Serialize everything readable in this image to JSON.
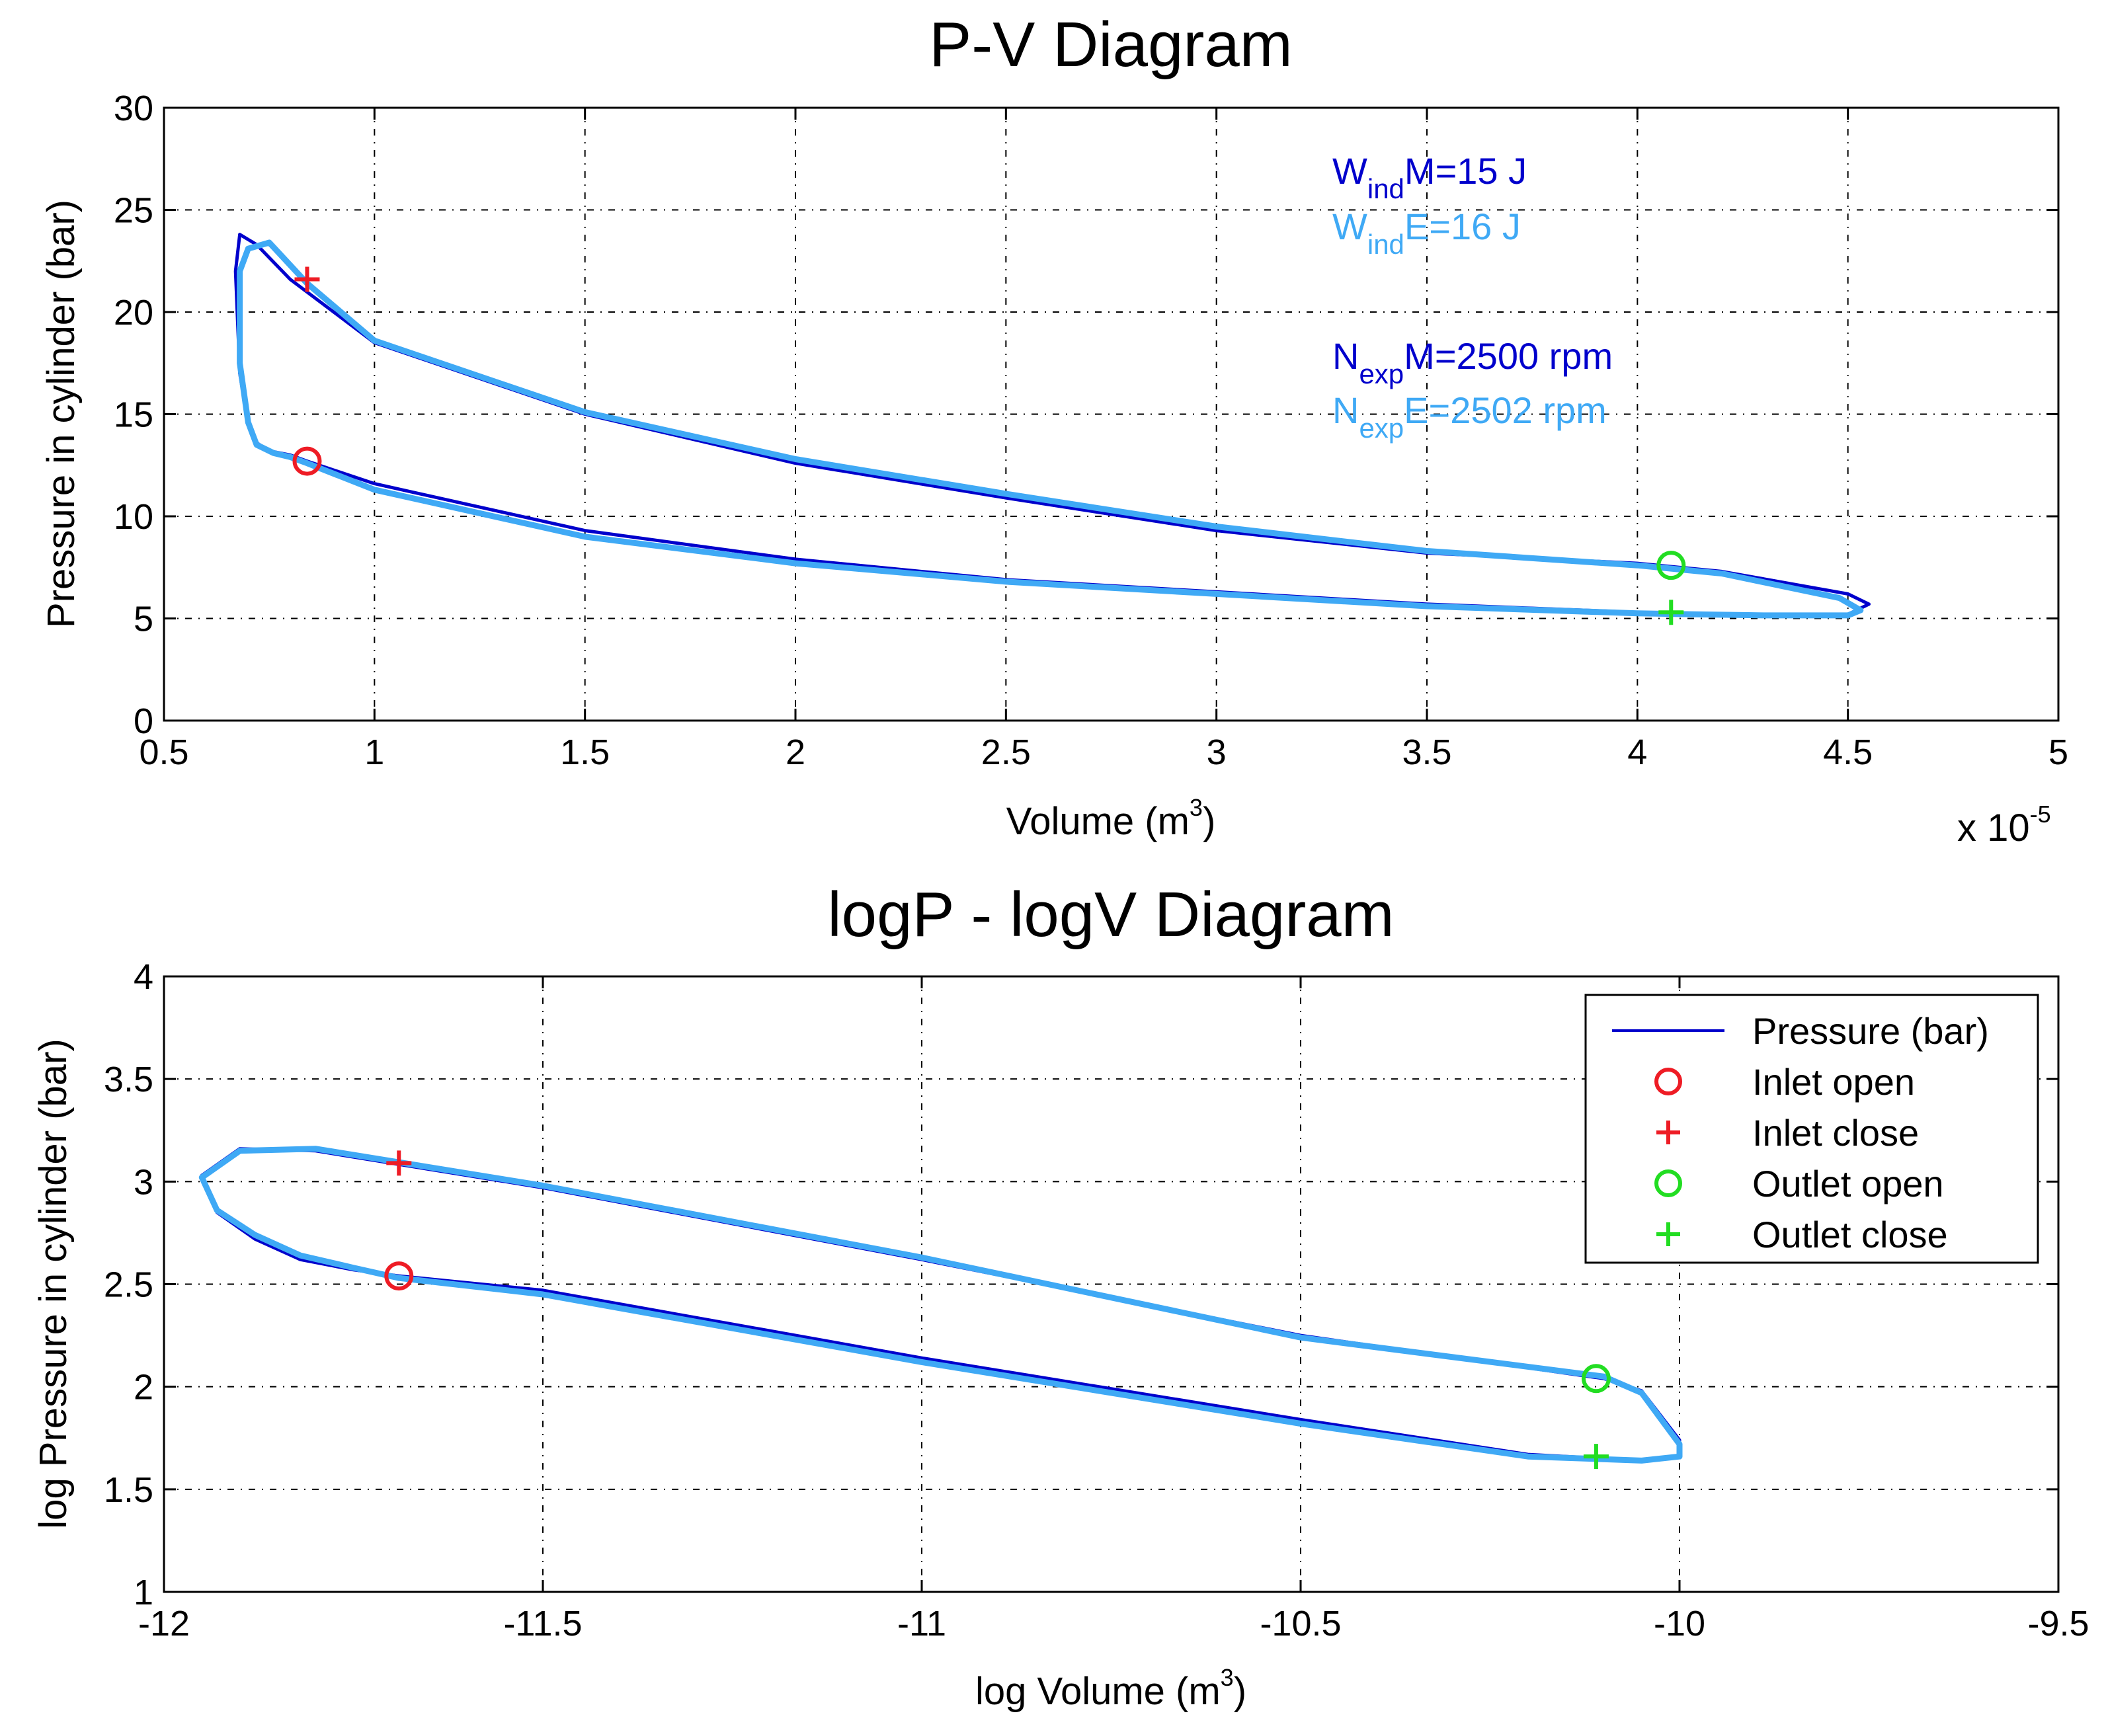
{
  "chart_data": [
    {
      "type": "line",
      "title": "P-V Diagram",
      "xlabel": "Volume (m",
      "xlabel_sup": "3",
      "xlabel_close": ")",
      "ylabel": "Pressure in cylinder (bar)",
      "xlim": [
        0.5,
        5
      ],
      "ylim": [
        0,
        30
      ],
      "x_multiplier": "x 10",
      "x_multiplier_exp": "-5",
      "x_ticks": [
        "0.5",
        "1",
        "1.5",
        "2",
        "2.5",
        "3",
        "3.5",
        "4",
        "4.5",
        "5"
      ],
      "y_ticks": [
        "0",
        "5",
        "10",
        "15",
        "20",
        "25",
        "30"
      ],
      "grid": true,
      "annotations": [
        {
          "main": "W",
          "sub": "ind",
          "rest": "M=15 J",
          "color": "#0000cc"
        },
        {
          "main": "W",
          "sub": "ind",
          "rest": "E=16 J",
          "color": "#3fa9f5"
        },
        {
          "main": "N",
          "sub": "exp",
          "rest": "M=2500 rpm",
          "color": "#0000cc"
        },
        {
          "main": "N",
          "sub": "exp",
          "rest": "E=2502 rpm",
          "color": "#3fa9f5"
        }
      ],
      "series": [
        {
          "name": "Pressure (bar)",
          "color": "#0000cc",
          "x": [
            0.84,
            1.0,
            1.5,
            2.0,
            2.5,
            3.0,
            3.5,
            4.0,
            4.3,
            4.5,
            4.55,
            4.5,
            4.2,
            4.0,
            3.5,
            3.0,
            2.5,
            2.0,
            1.5,
            1.0,
            0.8,
            0.72,
            0.68,
            0.67,
            0.68,
            0.7,
            0.72,
            0.75,
            0.8,
            0.84
          ],
          "y": [
            12.7,
            11.6,
            9.3,
            7.9,
            6.9,
            6.3,
            5.7,
            5.3,
            5.2,
            5.2,
            5.7,
            6.2,
            7.3,
            7.7,
            8.2,
            9.3,
            10.9,
            12.6,
            15.0,
            18.5,
            21.6,
            23.3,
            23.8,
            22.0,
            17.0,
            14.5,
            13.6,
            13.2,
            13.0,
            12.7
          ]
        },
        {
          "name": "",
          "color": "#3fa9f5",
          "x": [
            0.84,
            1.0,
            1.5,
            2.0,
            2.5,
            3.0,
            3.5,
            4.0,
            4.3,
            4.5,
            4.53,
            4.48,
            4.2,
            4.0,
            3.5,
            3.0,
            2.5,
            2.0,
            1.5,
            1.0,
            0.84,
            0.75,
            0.7,
            0.68,
            0.68,
            0.7,
            0.72,
            0.76,
            0.8,
            0.84
          ],
          "y": [
            12.6,
            11.3,
            9.0,
            7.7,
            6.8,
            6.2,
            5.6,
            5.25,
            5.15,
            5.15,
            5.4,
            6.0,
            7.2,
            7.6,
            8.3,
            9.5,
            11.1,
            12.8,
            15.1,
            18.6,
            21.4,
            23.4,
            23.1,
            22.0,
            17.5,
            14.6,
            13.5,
            13.1,
            12.9,
            12.6
          ]
        }
      ],
      "markers": [
        {
          "name": "Inlet open",
          "shape": "circle",
          "color": "#ee1c25",
          "x": 0.84,
          "y": 12.7
        },
        {
          "name": "Inlet close",
          "shape": "plus",
          "color": "#ee1c25",
          "x": 0.84,
          "y": 21.6
        },
        {
          "name": "Outlet open",
          "shape": "circle",
          "color": "#22dd22",
          "x": 4.08,
          "y": 7.6
        },
        {
          "name": "Outlet close",
          "shape": "plus",
          "color": "#22dd22",
          "x": 4.08,
          "y": 5.3
        }
      ]
    },
    {
      "type": "line",
      "title": "logP - logV Diagram",
      "xlabel": "log Volume (m",
      "xlabel_sup": "3",
      "xlabel_close": ")",
      "ylabel": "log Pressure in cylinder (bar)",
      "xlim": [
        -12,
        -9.5
      ],
      "ylim": [
        1,
        4
      ],
      "x_ticks": [
        "-12",
        "-11.5",
        "-11",
        "-10.5",
        "-10",
        "-9.5"
      ],
      "y_ticks": [
        "1",
        "1.5",
        "2",
        "2.5",
        "3",
        "3.5",
        "4"
      ],
      "grid": true,
      "legend": {
        "position": "top-right",
        "entries": [
          {
            "label": "Pressure (bar)",
            "shape": "line",
            "color": "#0000cc"
          },
          {
            "label": "Inlet open",
            "shape": "circle",
            "color": "#ee1c25"
          },
          {
            "label": "Inlet close",
            "shape": "plus",
            "color": "#ee1c25"
          },
          {
            "label": "Outlet open",
            "shape": "circle",
            "color": "#22dd22"
          },
          {
            "label": "Outlet close",
            "shape": "plus",
            "color": "#22dd22"
          }
        ]
      },
      "series": [
        {
          "name": "Pressure (bar)",
          "color": "#0000cc",
          "x": [
            -11.69,
            -11.5,
            -11.0,
            -10.5,
            -10.2,
            -10.05,
            -10.0,
            -10.0,
            -10.05,
            -10.1,
            -10.5,
            -11.0,
            -11.5,
            -11.8,
            -11.9,
            -11.95,
            -11.93,
            -11.88,
            -11.82,
            -11.75,
            -11.69
          ],
          "y": [
            2.54,
            2.47,
            2.14,
            1.84,
            1.67,
            1.64,
            1.66,
            1.74,
            1.98,
            2.04,
            2.25,
            2.62,
            2.97,
            3.15,
            3.16,
            3.03,
            2.85,
            2.72,
            2.62,
            2.57,
            2.54
          ]
        },
        {
          "name": "",
          "color": "#3fa9f5",
          "x": [
            -11.69,
            -11.5,
            -11.0,
            -10.5,
            -10.2,
            -10.05,
            -10.0,
            -10.0,
            -10.05,
            -10.1,
            -10.5,
            -11.0,
            -11.5,
            -11.8,
            -11.9,
            -11.95,
            -11.93,
            -11.88,
            -11.82,
            -11.75,
            -11.69
          ],
          "y": [
            2.53,
            2.45,
            2.12,
            1.82,
            1.66,
            1.64,
            1.66,
            1.72,
            1.97,
            2.05,
            2.24,
            2.63,
            2.98,
            3.16,
            3.15,
            3.02,
            2.86,
            2.74,
            2.64,
            2.58,
            2.53
          ]
        }
      ],
      "markers": [
        {
          "name": "Inlet open",
          "shape": "circle",
          "color": "#ee1c25",
          "x": -11.69,
          "y": 2.54
        },
        {
          "name": "Inlet close",
          "shape": "plus",
          "color": "#ee1c25",
          "x": -11.69,
          "y": 3.09
        },
        {
          "name": "Outlet open",
          "shape": "circle",
          "color": "#22dd22",
          "x": -10.11,
          "y": 2.04
        },
        {
          "name": "Outlet close",
          "shape": "plus",
          "color": "#22dd22",
          "x": -10.11,
          "y": 1.66
        }
      ]
    }
  ]
}
